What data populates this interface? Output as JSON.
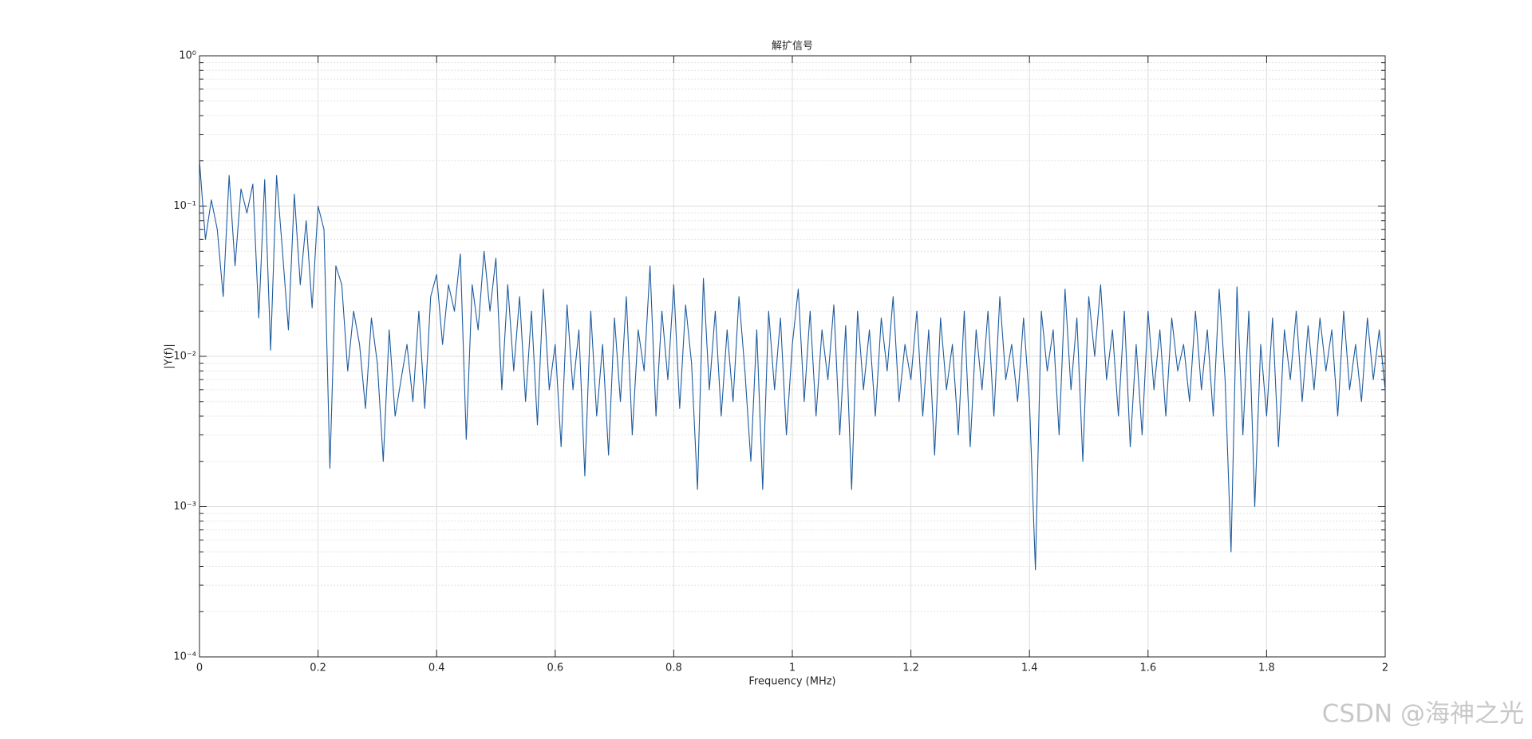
{
  "chart_data": {
    "type": "line",
    "title": "解扩信号",
    "x_label": "Frequency (MHz)",
    "y_label": "|Y(f)|",
    "watermark": "CSDN @海神之光",
    "x": [
      0,
      0.01,
      0.02,
      0.03,
      0.04,
      0.05,
      0.06,
      0.07,
      0.08,
      0.09,
      0.1,
      0.11,
      0.12,
      0.13,
      0.14,
      0.15,
      0.16,
      0.17,
      0.18,
      0.19,
      0.2,
      0.21,
      0.22,
      0.23,
      0.24,
      0.25,
      0.26,
      0.27,
      0.28,
      0.29,
      0.3,
      0.31,
      0.32,
      0.33,
      0.34,
      0.35,
      0.36,
      0.37,
      0.38,
      0.39,
      0.4,
      0.41,
      0.42,
      0.43,
      0.44,
      0.45,
      0.46,
      0.47,
      0.48,
      0.49,
      0.5,
      0.51,
      0.52,
      0.53,
      0.54,
      0.55,
      0.56,
      0.57,
      0.58,
      0.59,
      0.6,
      0.61,
      0.62,
      0.63,
      0.64,
      0.65,
      0.66,
      0.67,
      0.68,
      0.69,
      0.7,
      0.71,
      0.72,
      0.73,
      0.74,
      0.75,
      0.76,
      0.77,
      0.78,
      0.79,
      0.8,
      0.81,
      0.82,
      0.83,
      0.84,
      0.85,
      0.86,
      0.87,
      0.88,
      0.89,
      0.9,
      0.91,
      0.92,
      0.93,
      0.94,
      0.95,
      0.96,
      0.97,
      0.98,
      0.99,
      1,
      1.01,
      1.02,
      1.03,
      1.04,
      1.05,
      1.06,
      1.07,
      1.08,
      1.09,
      1.1,
      1.11,
      1.12,
      1.13,
      1.14,
      1.15,
      1.16,
      1.17,
      1.18,
      1.19,
      1.2,
      1.21,
      1.22,
      1.23,
      1.24,
      1.25,
      1.26,
      1.27,
      1.28,
      1.29,
      1.3,
      1.31,
      1.32,
      1.33,
      1.34,
      1.35,
      1.36,
      1.37,
      1.38,
      1.39,
      1.4,
      1.41,
      1.42,
      1.43,
      1.44,
      1.45,
      1.46,
      1.47,
      1.48,
      1.49,
      1.5,
      1.51,
      1.52,
      1.53,
      1.54,
      1.55,
      1.56,
      1.57,
      1.58,
      1.59,
      1.6,
      1.61,
      1.62,
      1.63,
      1.64,
      1.65,
      1.66,
      1.67,
      1.68,
      1.69,
      1.7,
      1.71,
      1.72,
      1.73,
      1.74,
      1.75,
      1.76,
      1.77,
      1.78,
      1.79,
      1.8,
      1.81,
      1.82,
      1.83,
      1.84,
      1.85,
      1.86,
      1.87,
      1.88,
      1.89,
      1.9,
      1.91,
      1.92,
      1.93,
      1.94,
      1.95,
      1.96,
      1.97,
      1.98,
      1.99,
      2
    ],
    "series": [
      {
        "color": "#1d5b9e",
        "values": [
          0.2,
          0.06,
          0.11,
          0.07,
          0.025,
          0.16,
          0.04,
          0.13,
          0.09,
          0.14,
          0.018,
          0.15,
          0.011,
          0.16,
          0.05,
          0.015,
          0.12,
          0.03,
          0.08,
          0.021,
          0.1,
          0.07,
          0.0018,
          0.04,
          0.03,
          0.008,
          0.02,
          0.012,
          0.0045,
          0.018,
          0.009,
          0.002,
          0.015,
          0.004,
          0.007,
          0.012,
          0.005,
          0.02,
          0.0045,
          0.025,
          0.035,
          0.012,
          0.03,
          0.02,
          0.048,
          0.0028,
          0.03,
          0.015,
          0.05,
          0.02,
          0.045,
          0.006,
          0.03,
          0.008,
          0.025,
          0.005,
          0.02,
          0.0035,
          0.028,
          0.006,
          0.012,
          0.0025,
          0.022,
          0.006,
          0.015,
          0.0016,
          0.02,
          0.004,
          0.012,
          0.0022,
          0.018,
          0.005,
          0.025,
          0.003,
          0.015,
          0.008,
          0.04,
          0.004,
          0.02,
          0.007,
          0.03,
          0.0045,
          0.022,
          0.009,
          0.0013,
          0.033,
          0.006,
          0.02,
          0.004,
          0.015,
          0.005,
          0.025,
          0.008,
          0.002,
          0.015,
          0.0013,
          0.02,
          0.006,
          0.018,
          0.003,
          0.012,
          0.028,
          0.005,
          0.02,
          0.004,
          0.015,
          0.007,
          0.022,
          0.003,
          0.016,
          0.0013,
          0.02,
          0.006,
          0.015,
          0.004,
          0.018,
          0.008,
          0.025,
          0.005,
          0.012,
          0.007,
          0.02,
          0.004,
          0.015,
          0.0022,
          0.018,
          0.006,
          0.012,
          0.003,
          0.02,
          0.0025,
          0.015,
          0.006,
          0.02,
          0.004,
          0.025,
          0.007,
          0.012,
          0.005,
          0.018,
          0.005,
          0.00038,
          0.02,
          0.008,
          0.015,
          0.003,
          0.028,
          0.006,
          0.018,
          0.002,
          0.025,
          0.01,
          0.03,
          0.007,
          0.015,
          0.004,
          0.02,
          0.0025,
          0.012,
          0.003,
          0.02,
          0.006,
          0.015,
          0.004,
          0.018,
          0.008,
          0.012,
          0.005,
          0.02,
          0.006,
          0.015,
          0.004,
          0.028,
          0.007,
          0.0005,
          0.029,
          0.003,
          0.02,
          0.001,
          0.012,
          0.004,
          0.018,
          0.0025,
          0.015,
          0.007,
          0.02,
          0.005,
          0.016,
          0.006,
          0.018,
          0.008,
          0.015,
          0.004,
          0.02,
          0.006,
          0.012,
          0.005,
          0.018,
          0.007,
          0.015,
          0.006
        ]
      }
    ],
    "xlim": [
      0,
      2
    ],
    "xticks": [
      0,
      0.2,
      0.4,
      0.6,
      0.8,
      1,
      1.2,
      1.4,
      1.6,
      1.8,
      2
    ],
    "ylim": [
      0.0001,
      1
    ],
    "y_scale": "log",
    "yticks": [
      {
        "value": 0.0001,
        "label": "10⁻⁴"
      },
      {
        "value": 0.001,
        "label": "10⁻³"
      },
      {
        "value": 0.01,
        "label": "10⁻²"
      },
      {
        "value": 0.1,
        "label": "10⁻¹"
      },
      {
        "value": 1,
        "label": "10⁰"
      }
    ],
    "grid": true,
    "minor_grid": true
  }
}
